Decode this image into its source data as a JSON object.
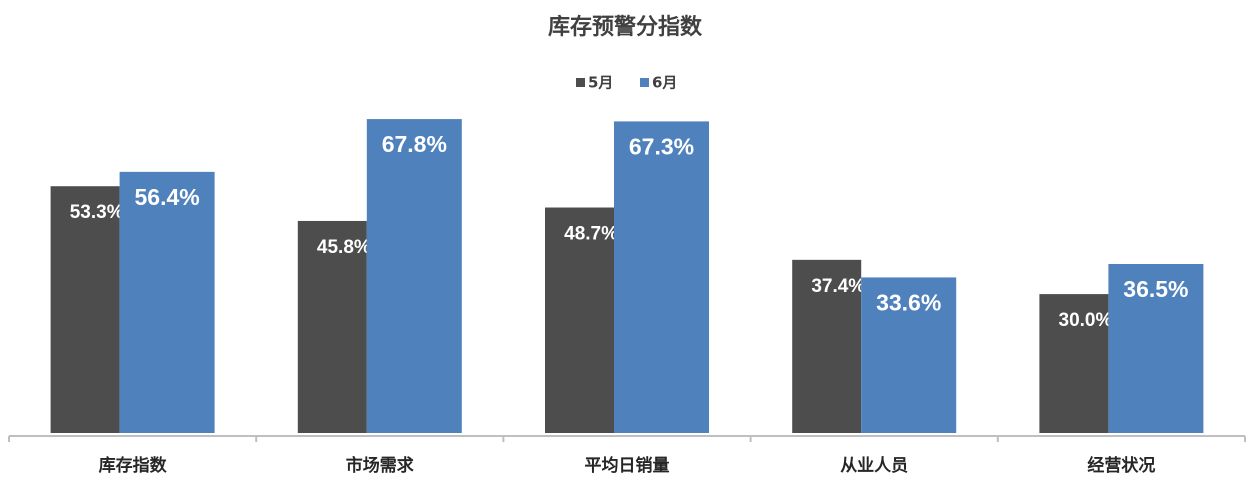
{
  "chart_data": {
    "type": "bar",
    "title": "库存预警分指数",
    "categories": [
      "库存指数",
      "市场需求",
      "平均日销量",
      "从业人员",
      "经营状况"
    ],
    "series": [
      {
        "name": "5月",
        "color": "#4d4d4d",
        "values": [
          53.3,
          45.8,
          48.7,
          37.4,
          30.0
        ],
        "value_labels": [
          "53.3%",
          "45.8%",
          "48.7%",
          "37.4%",
          "30.0%"
        ]
      },
      {
        "name": "6月",
        "color": "#4f81bd",
        "values": [
          56.4,
          67.8,
          67.3,
          33.6,
          36.5
        ],
        "value_labels": [
          "56.4%",
          "67.8%",
          "67.3%",
          "33.6%",
          "36.5%"
        ]
      }
    ],
    "legend": "top"
  }
}
